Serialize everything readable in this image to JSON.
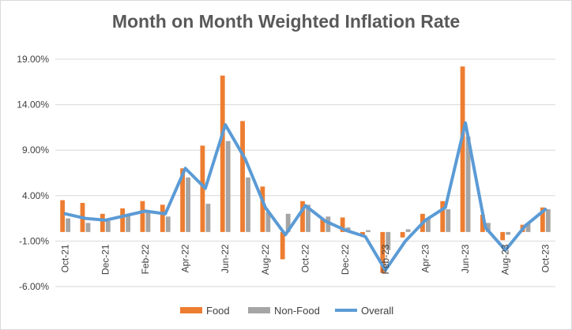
{
  "chart_data": {
    "type": "bar",
    "title": "Month on Month Weighted Inflation Rate",
    "xlabel": "",
    "ylabel": "",
    "ylim": [
      -6,
      19
    ],
    "yticks": [
      -6,
      -1,
      4,
      9,
      14,
      19
    ],
    "ytick_labels": [
      "-6.00%",
      "-1.00%",
      "4.00%",
      "9.00%",
      "14.00%",
      "19.00%"
    ],
    "grid": true,
    "legend_position": "bottom",
    "categories": [
      "Oct-21",
      "Nov-21",
      "Dec-21",
      "Jan-22",
      "Feb-22",
      "Mar-22",
      "Apr-22",
      "May-22",
      "Jun-22",
      "Jul-22",
      "Aug-22",
      "Sep-22",
      "Oct-22",
      "Nov-22",
      "Dec-22",
      "Jan-23",
      "Feb-23",
      "Mar-23",
      "Apr-23",
      "May-23",
      "Jun-23",
      "Jul-23",
      "Aug-23",
      "Sep-23",
      "Oct-23"
    ],
    "xtick_labels": [
      "Oct-21",
      "",
      "Dec-21",
      "",
      "Feb-22",
      "",
      "Apr-22",
      "",
      "Jun-22",
      "",
      "Aug-22",
      "",
      "Oct-22",
      "",
      "Dec-22",
      "",
      "Feb-23",
      "",
      "Apr-23",
      "",
      "Jun-23",
      "",
      "Aug-23",
      "",
      "Oct-23"
    ],
    "series": [
      {
        "name": "Food",
        "kind": "bar",
        "color": "#ED7D31",
        "values": [
          3.5,
          3.2,
          2.0,
          2.6,
          3.4,
          3.0,
          7.0,
          9.5,
          17.2,
          12.2,
          5.0,
          -3.0,
          3.4,
          1.5,
          1.6,
          -0.5,
          -4.5,
          -0.6,
          2.0,
          3.4,
          18.2,
          1.9,
          -0.9,
          0.8,
          2.7
        ]
      },
      {
        "name": "Non-Food",
        "kind": "bar",
        "color": "#A5A5A5",
        "values": [
          1.5,
          1.0,
          1.2,
          1.8,
          2.2,
          1.7,
          6.0,
          3.1,
          10.0,
          6.0,
          2.2,
          2.0,
          3.0,
          1.7,
          0.5,
          0.2,
          -2.0,
          0.3,
          1.5,
          2.5,
          10.5,
          1.0,
          -0.3,
          1.0,
          2.5
        ]
      },
      {
        "name": "Overall",
        "kind": "line",
        "color": "#5B9BD5",
        "values": [
          2.0,
          1.5,
          1.3,
          1.8,
          2.3,
          2.0,
          7.0,
          4.8,
          11.8,
          8.0,
          2.7,
          -0.3,
          2.9,
          1.2,
          0.2,
          -0.5,
          -4.2,
          -1.0,
          1.3,
          2.7,
          12.0,
          0.5,
          -2.0,
          0.7,
          2.5
        ]
      }
    ]
  }
}
